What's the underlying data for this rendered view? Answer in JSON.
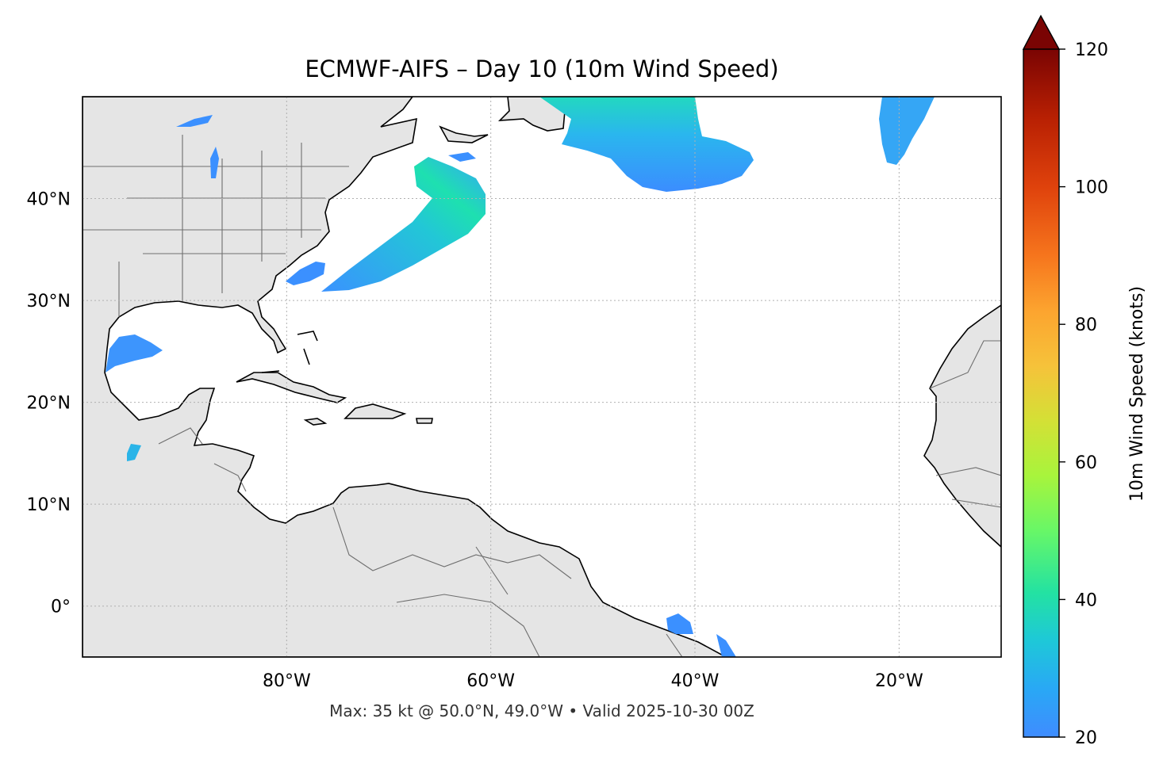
{
  "title": "ECMWF-AIFS – Day 10 (10m Wind Speed)",
  "footer": "Max: 35 kt @ 50.0°N, 49.0°W • Valid 2025-10-30 00Z",
  "map": {
    "extent": {
      "lon_min": -100,
      "lon_max": -10,
      "lat_min": -5,
      "lat_max": 50
    },
    "lat_ticks": [
      {
        "value": 40,
        "label": "40°N"
      },
      {
        "value": 30,
        "label": "30°N"
      },
      {
        "value": 20,
        "label": "20°N"
      },
      {
        "value": 10,
        "label": "10°N"
      },
      {
        "value": 0,
        "label": "0°"
      }
    ],
    "lon_ticks": [
      {
        "value": -80,
        "label": "80°W"
      },
      {
        "value": -60,
        "label": "60°W"
      },
      {
        "value": -40,
        "label": "40°W"
      },
      {
        "value": -20,
        "label": "20°W"
      }
    ],
    "land_color": "#e5e5e5",
    "coast_color": "#000000",
    "border_color": "#6e6e6e",
    "grid_color": "#b0b0b0"
  },
  "colorbar": {
    "label": "10m Wind Speed (knots)",
    "min": 20,
    "max": 120,
    "extend": "max",
    "ticks": [
      {
        "value": 20,
        "label": "20"
      },
      {
        "value": 40,
        "label": "40"
      },
      {
        "value": 60,
        "label": "60"
      },
      {
        "value": 80,
        "label": "80"
      },
      {
        "value": 100,
        "label": "100"
      },
      {
        "value": 120,
        "label": "120"
      }
    ],
    "colormap": "turbo"
  },
  "wind_features": [
    {
      "id": "north-atlantic-jet",
      "speed_kt": 35
    },
    {
      "id": "east-atlantic-band",
      "speed_kt": 26
    },
    {
      "id": "gulf-of-america-area",
      "speed_kt": 25
    }
  ]
}
